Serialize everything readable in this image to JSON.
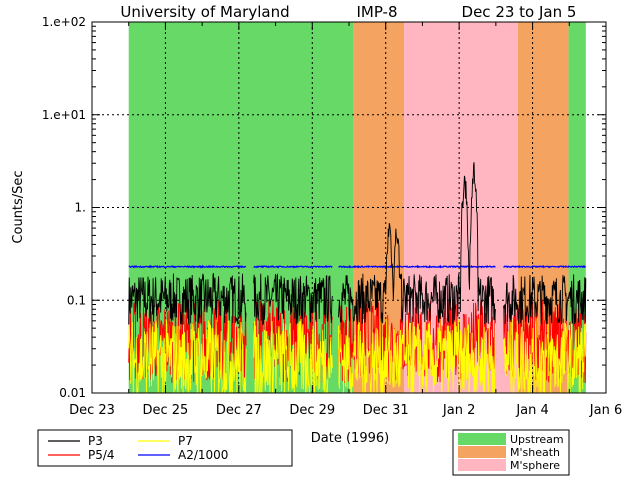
{
  "header": {
    "institution": "University of Maryland",
    "spacecraft": "IMP-8",
    "date_range": "Dec 23 to Jan 5"
  },
  "chart_data": {
    "type": "line",
    "ylabel": "Counts/Sec",
    "xlabel": "Date (1996)",
    "yscale": "log",
    "ylim": [
      0.01,
      100
    ],
    "xlim": [
      0,
      14
    ],
    "grid": true,
    "y_ticks": [
      {
        "value": 100,
        "label": "1.e+02"
      },
      {
        "value": 10,
        "label": "1.e+01"
      },
      {
        "value": 1,
        "label": "1."
      },
      {
        "value": 0.1,
        "label": "0.1"
      },
      {
        "value": 0.01,
        "label": "0.01"
      }
    ],
    "x_ticks": [
      {
        "value": 0,
        "label": "Dec 23"
      },
      {
        "value": 2,
        "label": "Dec 25"
      },
      {
        "value": 4,
        "label": "Dec 27"
      },
      {
        "value": 6,
        "label": "Dec 29"
      },
      {
        "value": 8,
        "label": "Dec 31"
      },
      {
        "value": 10,
        "label": "Jan 2"
      },
      {
        "value": 12,
        "label": "Jan 4"
      },
      {
        "value": 14,
        "label": "Jan 6"
      }
    ],
    "regions": [
      {
        "start": 1.0,
        "end": 7.12,
        "type": "Upstream"
      },
      {
        "start": 7.12,
        "end": 8.5,
        "type": "M'sheath"
      },
      {
        "start": 8.5,
        "end": 11.6,
        "type": "M'sphere"
      },
      {
        "start": 11.6,
        "end": 12.98,
        "type": "M'sheath"
      },
      {
        "start": 12.98,
        "end": 13.45,
        "type": "Upstream"
      }
    ],
    "region_legend": [
      {
        "name": "Upstream",
        "color": "#66d966"
      },
      {
        "name": "M'sheath",
        "color": "#f4a460"
      },
      {
        "name": "M'sphere",
        "color": "#ffb6c1"
      }
    ],
    "series": [
      {
        "name": "P3",
        "color": "#000000",
        "x_range": [
          1.0,
          13.45
        ],
        "baseline": 0.11,
        "spikes": [
          {
            "x": 8.1,
            "y": 0.9
          },
          {
            "x": 8.3,
            "y": 0.8
          },
          {
            "x": 10.15,
            "y": 3.0
          },
          {
            "x": 10.4,
            "y": 3.5
          }
        ]
      },
      {
        "name": "P5/4",
        "color": "#ff0000",
        "x_range": [
          1.0,
          13.45
        ],
        "baseline": 0.04
      },
      {
        "name": "P7",
        "color": "#ffff00",
        "x_range": [
          1.0,
          13.45
        ],
        "baseline": 0.025
      },
      {
        "name": "A2/1000",
        "color": "#0000ff",
        "x_range": [
          1.0,
          13.45
        ],
        "baseline": 0.23
      }
    ]
  }
}
